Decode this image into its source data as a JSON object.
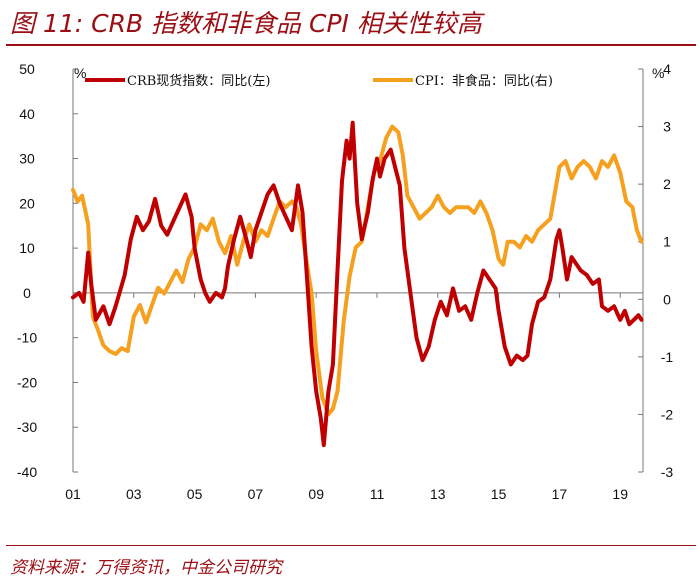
{
  "title": "图 11: CRB 指数和非食品 CPI 相关性较高",
  "source": "资料来源：万得资讯，中金公司研究",
  "colors": {
    "crb": "#c00000",
    "cpi": "#f5a01e",
    "title": "#9b0f14"
  },
  "chart_data": {
    "type": "line",
    "grid": false,
    "legend_position": "top",
    "x_range": [
      2001.0,
      2019.75
    ],
    "x_ticks": [
      {
        "value": 2001,
        "label": "01"
      },
      {
        "value": 2003,
        "label": "03"
      },
      {
        "value": 2005,
        "label": "05"
      },
      {
        "value": 2007,
        "label": "07"
      },
      {
        "value": 2009,
        "label": "09"
      },
      {
        "value": 2011,
        "label": "11"
      },
      {
        "value": 2013,
        "label": "13"
      },
      {
        "value": 2015,
        "label": "15"
      },
      {
        "value": 2017,
        "label": "17"
      },
      {
        "value": 2019,
        "label": "19"
      }
    ],
    "y_left": {
      "unit": "%",
      "range": [
        -40,
        50
      ],
      "ticks": [
        -40,
        -30,
        -20,
        -10,
        0,
        10,
        20,
        30,
        40,
        50
      ]
    },
    "y_right": {
      "unit": "%",
      "range": [
        -3,
        4
      ],
      "ticks": [
        -3,
        -2,
        -1,
        0,
        1,
        2,
        3,
        4
      ]
    },
    "series": [
      {
        "name": "CRB现货指数：同比(左)",
        "axis": "left",
        "color": "#c00000",
        "points": [
          [
            2001.0,
            -1
          ],
          [
            2001.2,
            0
          ],
          [
            2001.35,
            -2
          ],
          [
            2001.5,
            9
          ],
          [
            2001.6,
            2
          ],
          [
            2001.75,
            -6
          ],
          [
            2002.0,
            -3
          ],
          [
            2002.2,
            -7
          ],
          [
            2002.4,
            -3
          ],
          [
            2002.7,
            4
          ],
          [
            2002.9,
            12
          ],
          [
            2003.1,
            17
          ],
          [
            2003.3,
            14
          ],
          [
            2003.5,
            16
          ],
          [
            2003.7,
            21
          ],
          [
            2003.9,
            15
          ],
          [
            2004.1,
            13
          ],
          [
            2004.3,
            16
          ],
          [
            2004.5,
            19
          ],
          [
            2004.7,
            22
          ],
          [
            2004.9,
            17
          ],
          [
            2005.0,
            10
          ],
          [
            2005.2,
            3
          ],
          [
            2005.35,
            0
          ],
          [
            2005.5,
            -2
          ],
          [
            2005.7,
            0
          ],
          [
            2005.9,
            -1
          ],
          [
            2006.0,
            1
          ],
          [
            2006.1,
            6
          ],
          [
            2006.3,
            12
          ],
          [
            2006.5,
            17
          ],
          [
            2006.7,
            12
          ],
          [
            2006.85,
            8
          ],
          [
            2007.0,
            14
          ],
          [
            2007.2,
            18
          ],
          [
            2007.4,
            22
          ],
          [
            2007.6,
            24
          ],
          [
            2007.8,
            20
          ],
          [
            2008.0,
            17
          ],
          [
            2008.2,
            14
          ],
          [
            2008.4,
            24
          ],
          [
            2008.55,
            18
          ],
          [
            2008.7,
            3
          ],
          [
            2008.85,
            -12
          ],
          [
            2009.0,
            -22
          ],
          [
            2009.15,
            -28
          ],
          [
            2009.25,
            -34
          ],
          [
            2009.4,
            -22
          ],
          [
            2009.55,
            -16
          ],
          [
            2009.7,
            5
          ],
          [
            2009.85,
            25
          ],
          [
            2010.0,
            34
          ],
          [
            2010.1,
            30
          ],
          [
            2010.2,
            38
          ],
          [
            2010.35,
            20
          ],
          [
            2010.5,
            12
          ],
          [
            2010.7,
            18
          ],
          [
            2010.85,
            25
          ],
          [
            2011.0,
            30
          ],
          [
            2011.1,
            26
          ],
          [
            2011.25,
            30
          ],
          [
            2011.45,
            32
          ],
          [
            2011.6,
            28
          ],
          [
            2011.75,
            24
          ],
          [
            2011.9,
            10
          ],
          [
            2012.1,
            0
          ],
          [
            2012.3,
            -10
          ],
          [
            2012.5,
            -15
          ],
          [
            2012.7,
            -12
          ],
          [
            2012.9,
            -6
          ],
          [
            2013.1,
            -2
          ],
          [
            2013.3,
            -5
          ],
          [
            2013.5,
            1
          ],
          [
            2013.7,
            -4
          ],
          [
            2013.9,
            -3
          ],
          [
            2014.1,
            -6
          ],
          [
            2014.3,
            0
          ],
          [
            2014.5,
            5
          ],
          [
            2014.7,
            3
          ],
          [
            2014.9,
            1
          ],
          [
            2015.0,
            -4
          ],
          [
            2015.2,
            -12
          ],
          [
            2015.4,
            -16
          ],
          [
            2015.6,
            -14
          ],
          [
            2015.8,
            -15
          ],
          [
            2015.95,
            -14
          ],
          [
            2016.1,
            -7
          ],
          [
            2016.3,
            -2
          ],
          [
            2016.5,
            -1
          ],
          [
            2016.7,
            3
          ],
          [
            2016.9,
            12
          ],
          [
            2017.0,
            14
          ],
          [
            2017.1,
            10
          ],
          [
            2017.25,
            3
          ],
          [
            2017.4,
            8
          ],
          [
            2017.5,
            7
          ],
          [
            2017.7,
            5
          ],
          [
            2017.9,
            4
          ],
          [
            2018.1,
            2
          ],
          [
            2018.3,
            3
          ],
          [
            2018.4,
            -3
          ],
          [
            2018.6,
            -4
          ],
          [
            2018.8,
            -3
          ],
          [
            2019.0,
            -6
          ],
          [
            2019.15,
            -4
          ],
          [
            2019.3,
            -7
          ],
          [
            2019.45,
            -6
          ],
          [
            2019.6,
            -5
          ],
          [
            2019.7,
            -6
          ]
        ]
      },
      {
        "name": "CPI：非食品：同比(右)",
        "axis": "right",
        "color": "#f5a01e",
        "points": [
          [
            2001.0,
            1.9
          ],
          [
            2001.15,
            1.7
          ],
          [
            2001.3,
            1.8
          ],
          [
            2001.5,
            1.3
          ],
          [
            2001.65,
            -0.3
          ],
          [
            2001.8,
            -0.5
          ],
          [
            2002.0,
            -0.8
          ],
          [
            2002.2,
            -0.9
          ],
          [
            2002.4,
            -0.95
          ],
          [
            2002.6,
            -0.85
          ],
          [
            2002.8,
            -0.9
          ],
          [
            2003.0,
            -0.3
          ],
          [
            2003.2,
            -0.1
          ],
          [
            2003.4,
            -0.4
          ],
          [
            2003.6,
            -0.1
          ],
          [
            2003.8,
            0.2
          ],
          [
            2004.0,
            0.1
          ],
          [
            2004.2,
            0.3
          ],
          [
            2004.4,
            0.5
          ],
          [
            2004.6,
            0.3
          ],
          [
            2004.8,
            0.7
          ],
          [
            2005.0,
            0.9
          ],
          [
            2005.2,
            1.3
          ],
          [
            2005.4,
            1.2
          ],
          [
            2005.6,
            1.4
          ],
          [
            2005.8,
            1.0
          ],
          [
            2006.0,
            0.8
          ],
          [
            2006.2,
            1.1
          ],
          [
            2006.4,
            0.6
          ],
          [
            2006.6,
            1.0
          ],
          [
            2006.8,
            1.3
          ],
          [
            2007.0,
            1.0
          ],
          [
            2007.2,
            1.2
          ],
          [
            2007.4,
            1.1
          ],
          [
            2007.6,
            1.4
          ],
          [
            2007.8,
            1.7
          ],
          [
            2008.0,
            1.6
          ],
          [
            2008.2,
            1.7
          ],
          [
            2008.35,
            1.6
          ],
          [
            2008.5,
            1.3
          ],
          [
            2008.7,
            0.6
          ],
          [
            2008.85,
            0.1
          ],
          [
            2009.0,
            -0.9
          ],
          [
            2009.2,
            -1.7
          ],
          [
            2009.4,
            -2.0
          ],
          [
            2009.55,
            -1.9
          ],
          [
            2009.7,
            -1.6
          ],
          [
            2009.9,
            -0.4
          ],
          [
            2010.1,
            0.4
          ],
          [
            2010.3,
            0.9
          ],
          [
            2010.5,
            1.0
          ],
          [
            2010.7,
            1.6
          ],
          [
            2010.9,
            2.2
          ],
          [
            2011.1,
            2.4
          ],
          [
            2011.3,
            2.8
          ],
          [
            2011.5,
            3.0
          ],
          [
            2011.7,
            2.9
          ],
          [
            2011.85,
            2.5
          ],
          [
            2012.0,
            1.8
          ],
          [
            2012.2,
            1.6
          ],
          [
            2012.4,
            1.4
          ],
          [
            2012.6,
            1.5
          ],
          [
            2012.8,
            1.6
          ],
          [
            2013.0,
            1.8
          ],
          [
            2013.2,
            1.6
          ],
          [
            2013.4,
            1.5
          ],
          [
            2013.6,
            1.6
          ],
          [
            2013.8,
            1.6
          ],
          [
            2014.0,
            1.6
          ],
          [
            2014.2,
            1.5
          ],
          [
            2014.4,
            1.7
          ],
          [
            2014.6,
            1.5
          ],
          [
            2014.8,
            1.2
          ],
          [
            2015.0,
            0.7
          ],
          [
            2015.15,
            0.6
          ],
          [
            2015.3,
            1.0
          ],
          [
            2015.5,
            1.0
          ],
          [
            2015.7,
            0.9
          ],
          [
            2015.9,
            1.1
          ],
          [
            2016.1,
            1.0
          ],
          [
            2016.3,
            1.2
          ],
          [
            2016.5,
            1.3
          ],
          [
            2016.7,
            1.4
          ],
          [
            2016.9,
            2.0
          ],
          [
            2017.0,
            2.3
          ],
          [
            2017.2,
            2.4
          ],
          [
            2017.4,
            2.1
          ],
          [
            2017.6,
            2.3
          ],
          [
            2017.8,
            2.4
          ],
          [
            2018.0,
            2.3
          ],
          [
            2018.2,
            2.1
          ],
          [
            2018.4,
            2.4
          ],
          [
            2018.6,
            2.3
          ],
          [
            2018.8,
            2.5
          ],
          [
            2019.0,
            2.2
          ],
          [
            2019.2,
            1.7
          ],
          [
            2019.4,
            1.6
          ],
          [
            2019.55,
            1.2
          ],
          [
            2019.7,
            1.0
          ]
        ]
      }
    ]
  }
}
